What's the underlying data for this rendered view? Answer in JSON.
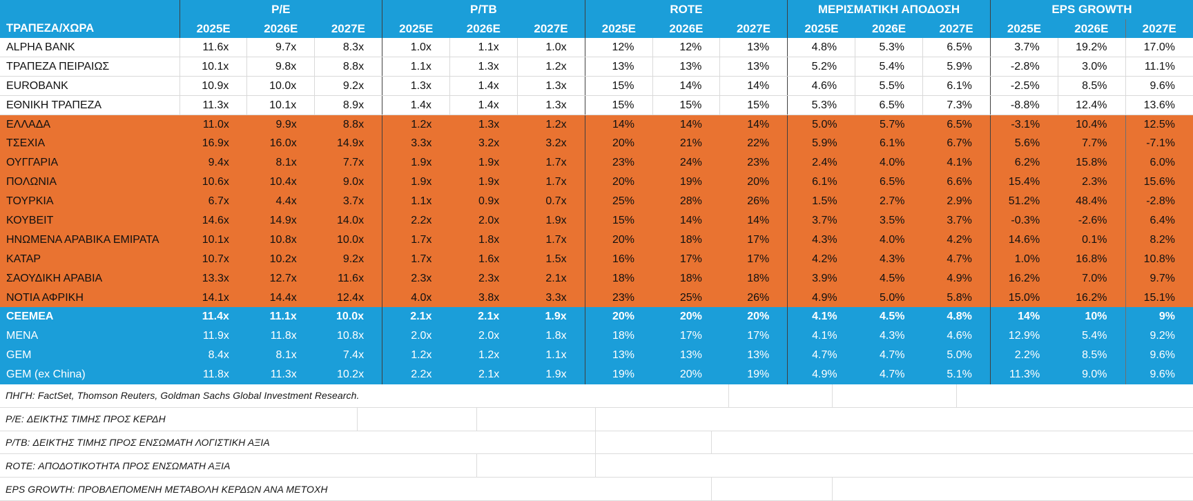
{
  "chart_data": {
    "type": "table",
    "corner_label": "ΤΡΑΠΕΖΑ/ΧΩΡΑ",
    "column_groups": [
      {
        "label": "P/E",
        "years": [
          "2025E",
          "2026E",
          "2027E"
        ]
      },
      {
        "label": "P/TB",
        "years": [
          "2025E",
          "2026E",
          "2027E"
        ]
      },
      {
        "label": "ROTE",
        "years": [
          "2025E",
          "2026E",
          "2027E"
        ]
      },
      {
        "label": "ΜΕΡΙΣΜΑΤΙΚΗ ΑΠΟΔΟΣΗ",
        "years": [
          "2025E",
          "2026E",
          "2027E"
        ]
      },
      {
        "label": "EPS GROWTH",
        "years": [
          "2025E",
          "2026E",
          "2027E"
        ]
      }
    ],
    "rows": [
      {
        "name": "ALPHA BANK",
        "style": "bank",
        "values": [
          "11.6x",
          "9.7x",
          "8.3x",
          "1.0x",
          "1.1x",
          "1.0x",
          "12%",
          "12%",
          "13%",
          "4.8%",
          "5.3%",
          "6.5%",
          "3.7%",
          "19.2%",
          "17.0%"
        ]
      },
      {
        "name": "ΤΡΑΠΕΖΑ ΠΕΙΡΑΙΩΣ",
        "style": "bank",
        "values": [
          "10.1x",
          "9.8x",
          "8.8x",
          "1.1x",
          "1.3x",
          "1.2x",
          "13%",
          "13%",
          "13%",
          "5.2%",
          "5.4%",
          "5.9%",
          "-2.8%",
          "3.0%",
          "11.1%"
        ]
      },
      {
        "name": "EUROBANK",
        "style": "bank",
        "values": [
          "10.9x",
          "10.0x",
          "9.2x",
          "1.3x",
          "1.4x",
          "1.3x",
          "15%",
          "14%",
          "14%",
          "4.6%",
          "5.5%",
          "6.1%",
          "-2.5%",
          "8.5%",
          "9.6%"
        ]
      },
      {
        "name": "ΕΘΝΙΚΗ ΤΡΑΠΕΖΑ",
        "style": "bank",
        "values": [
          "11.3x",
          "10.1x",
          "8.9x",
          "1.4x",
          "1.4x",
          "1.3x",
          "15%",
          "15%",
          "15%",
          "5.3%",
          "6.5%",
          "7.3%",
          "-8.8%",
          "12.4%",
          "13.6%"
        ]
      },
      {
        "name": "ΕΛΛΑΔΑ",
        "style": "country",
        "values": [
          "11.0x",
          "9.9x",
          "8.8x",
          "1.2x",
          "1.3x",
          "1.2x",
          "14%",
          "14%",
          "14%",
          "5.0%",
          "5.7%",
          "6.5%",
          "-3.1%",
          "10.4%",
          "12.5%"
        ]
      },
      {
        "name": "ΤΣΕΧΙΑ",
        "style": "country",
        "values": [
          "16.9x",
          "16.0x",
          "14.9x",
          "3.3x",
          "3.2x",
          "3.2x",
          "20%",
          "21%",
          "22%",
          "5.9%",
          "6.1%",
          "6.7%",
          "5.6%",
          "7.7%",
          "-7.1%"
        ]
      },
      {
        "name": "ΟΥΓΓΑΡΙΑ",
        "style": "country",
        "values": [
          "9.4x",
          "8.1x",
          "7.7x",
          "1.9x",
          "1.9x",
          "1.7x",
          "23%",
          "24%",
          "23%",
          "2.4%",
          "4.0%",
          "4.1%",
          "6.2%",
          "15.8%",
          "6.0%"
        ]
      },
      {
        "name": "ΠΟΛΩΝΙΑ",
        "style": "country",
        "values": [
          "10.6x",
          "10.4x",
          "9.0x",
          "1.9x",
          "1.9x",
          "1.7x",
          "20%",
          "19%",
          "20%",
          "6.1%",
          "6.5%",
          "6.6%",
          "15.4%",
          "2.3%",
          "15.6%"
        ]
      },
      {
        "name": "ΤΟΥΡΚΙΑ",
        "style": "country",
        "values": [
          "6.7x",
          "4.4x",
          "3.7x",
          "1.1x",
          "0.9x",
          "0.7x",
          "25%",
          "28%",
          "26%",
          "1.5%",
          "2.7%",
          "2.9%",
          "51.2%",
          "48.4%",
          "-2.8%"
        ]
      },
      {
        "name": "ΚΟΥΒΕΙΤ",
        "style": "country",
        "values": [
          "14.6x",
          "14.9x",
          "14.0x",
          "2.2x",
          "2.0x",
          "1.9x",
          "15%",
          "14%",
          "14%",
          "3.7%",
          "3.5%",
          "3.7%",
          "-0.3%",
          "-2.6%",
          "6.4%"
        ]
      },
      {
        "name": "ΗΝΩΜΕΝΑ ΑΡΑΒΙΚΑ ΕΜΙΡΑΤΑ",
        "style": "country",
        "values": [
          "10.1x",
          "10.8x",
          "10.0x",
          "1.7x",
          "1.8x",
          "1.7x",
          "20%",
          "18%",
          "17%",
          "4.3%",
          "4.0%",
          "4.2%",
          "14.6%",
          "0.1%",
          "8.2%"
        ]
      },
      {
        "name": "ΚΑΤΑΡ",
        "style": "country",
        "values": [
          "10.7x",
          "10.2x",
          "9.2x",
          "1.7x",
          "1.6x",
          "1.5x",
          "16%",
          "17%",
          "17%",
          "4.2%",
          "4.3%",
          "4.7%",
          "1.0%",
          "16.8%",
          "10.8%"
        ]
      },
      {
        "name": "ΣΑΟΥΔΙΚΗ ΑΡΑΒΙΑ",
        "style": "country",
        "values": [
          "13.3x",
          "12.7x",
          "11.6x",
          "2.3x",
          "2.3x",
          "2.1x",
          "18%",
          "18%",
          "18%",
          "3.9%",
          "4.5%",
          "4.9%",
          "16.2%",
          "7.0%",
          "9.7%"
        ]
      },
      {
        "name": "ΝΟΤΙΑ ΑΦΡΙΚΗ",
        "style": "country",
        "values": [
          "14.1x",
          "14.4x",
          "12.4x",
          "4.0x",
          "3.8x",
          "3.3x",
          "23%",
          "25%",
          "26%",
          "4.9%",
          "5.0%",
          "5.8%",
          "15.0%",
          "16.2%",
          "15.1%"
        ]
      },
      {
        "name": "CEEMEA",
        "style": "aggregate-bold",
        "values": [
          "11.4x",
          "11.1x",
          "10.0x",
          "2.1x",
          "2.1x",
          "1.9x",
          "20%",
          "20%",
          "20%",
          "4.1%",
          "4.5%",
          "4.8%",
          "14%",
          "10%",
          "9%"
        ]
      },
      {
        "name": "MENA",
        "style": "aggregate",
        "values": [
          "11.9x",
          "11.8x",
          "10.8x",
          "2.0x",
          "2.0x",
          "1.8x",
          "18%",
          "17%",
          "17%",
          "4.1%",
          "4.3%",
          "4.6%",
          "12.9%",
          "5.4%",
          "9.2%"
        ]
      },
      {
        "name": "GEM",
        "style": "aggregate",
        "values": [
          "8.4x",
          "8.1x",
          "7.4x",
          "1.2x",
          "1.2x",
          "1.1x",
          "13%",
          "13%",
          "13%",
          "4.7%",
          "4.7%",
          "5.0%",
          "2.2%",
          "8.5%",
          "9.6%"
        ]
      },
      {
        "name": "GEM (ex China)",
        "style": "aggregate",
        "values": [
          "11.8x",
          "11.3x",
          "10.2x",
          "2.2x",
          "2.1x",
          "1.9x",
          "19%",
          "20%",
          "19%",
          "4.9%",
          "4.7%",
          "5.1%",
          "11.3%",
          "9.0%",
          "9.6%"
        ]
      }
    ],
    "footnotes": [
      "ΠΗΓΗ: FactSet, Thomson Reuters, Goldman Sachs Global Investment Research.",
      "P/E: ΔΕΙΚΤΗΣ ΤΙΜΗΣ ΠΡΟΣ ΚΕΡΔΗ",
      "P/TB: ΔΕΙΚΤΗΣ ΤΙΜΗΣ ΠΡΟΣ ΕΝΣΩΜΑΤΗ ΛΟΓΙΣΤΙΚΗ ΑΞΙΑ",
      "ROTE: ΑΠΟΔΟΤΙΚΟΤΗΤΑ ΠΡΟΣ ΕΝΣΩΜΑΤΗ ΑΞΙΑ",
      "EPS GROWTH: ΠΡΟΒΛΕΠΟΜΕΝΗ ΜΕΤΑΒΟΛΗ ΚΕΡΔΩΝ ΑΝΑ ΜΕΤΟΧΗ"
    ],
    "colors": {
      "header_blue": "#1B9ED9",
      "region_orange": "#E97331",
      "aggregate_blue": "#1B9ED9",
      "grid_light": "#D9D9D9",
      "grid_dark": "#3F3F3F",
      "text_dark": "#101010",
      "text_light": "#FFFFFF"
    }
  }
}
